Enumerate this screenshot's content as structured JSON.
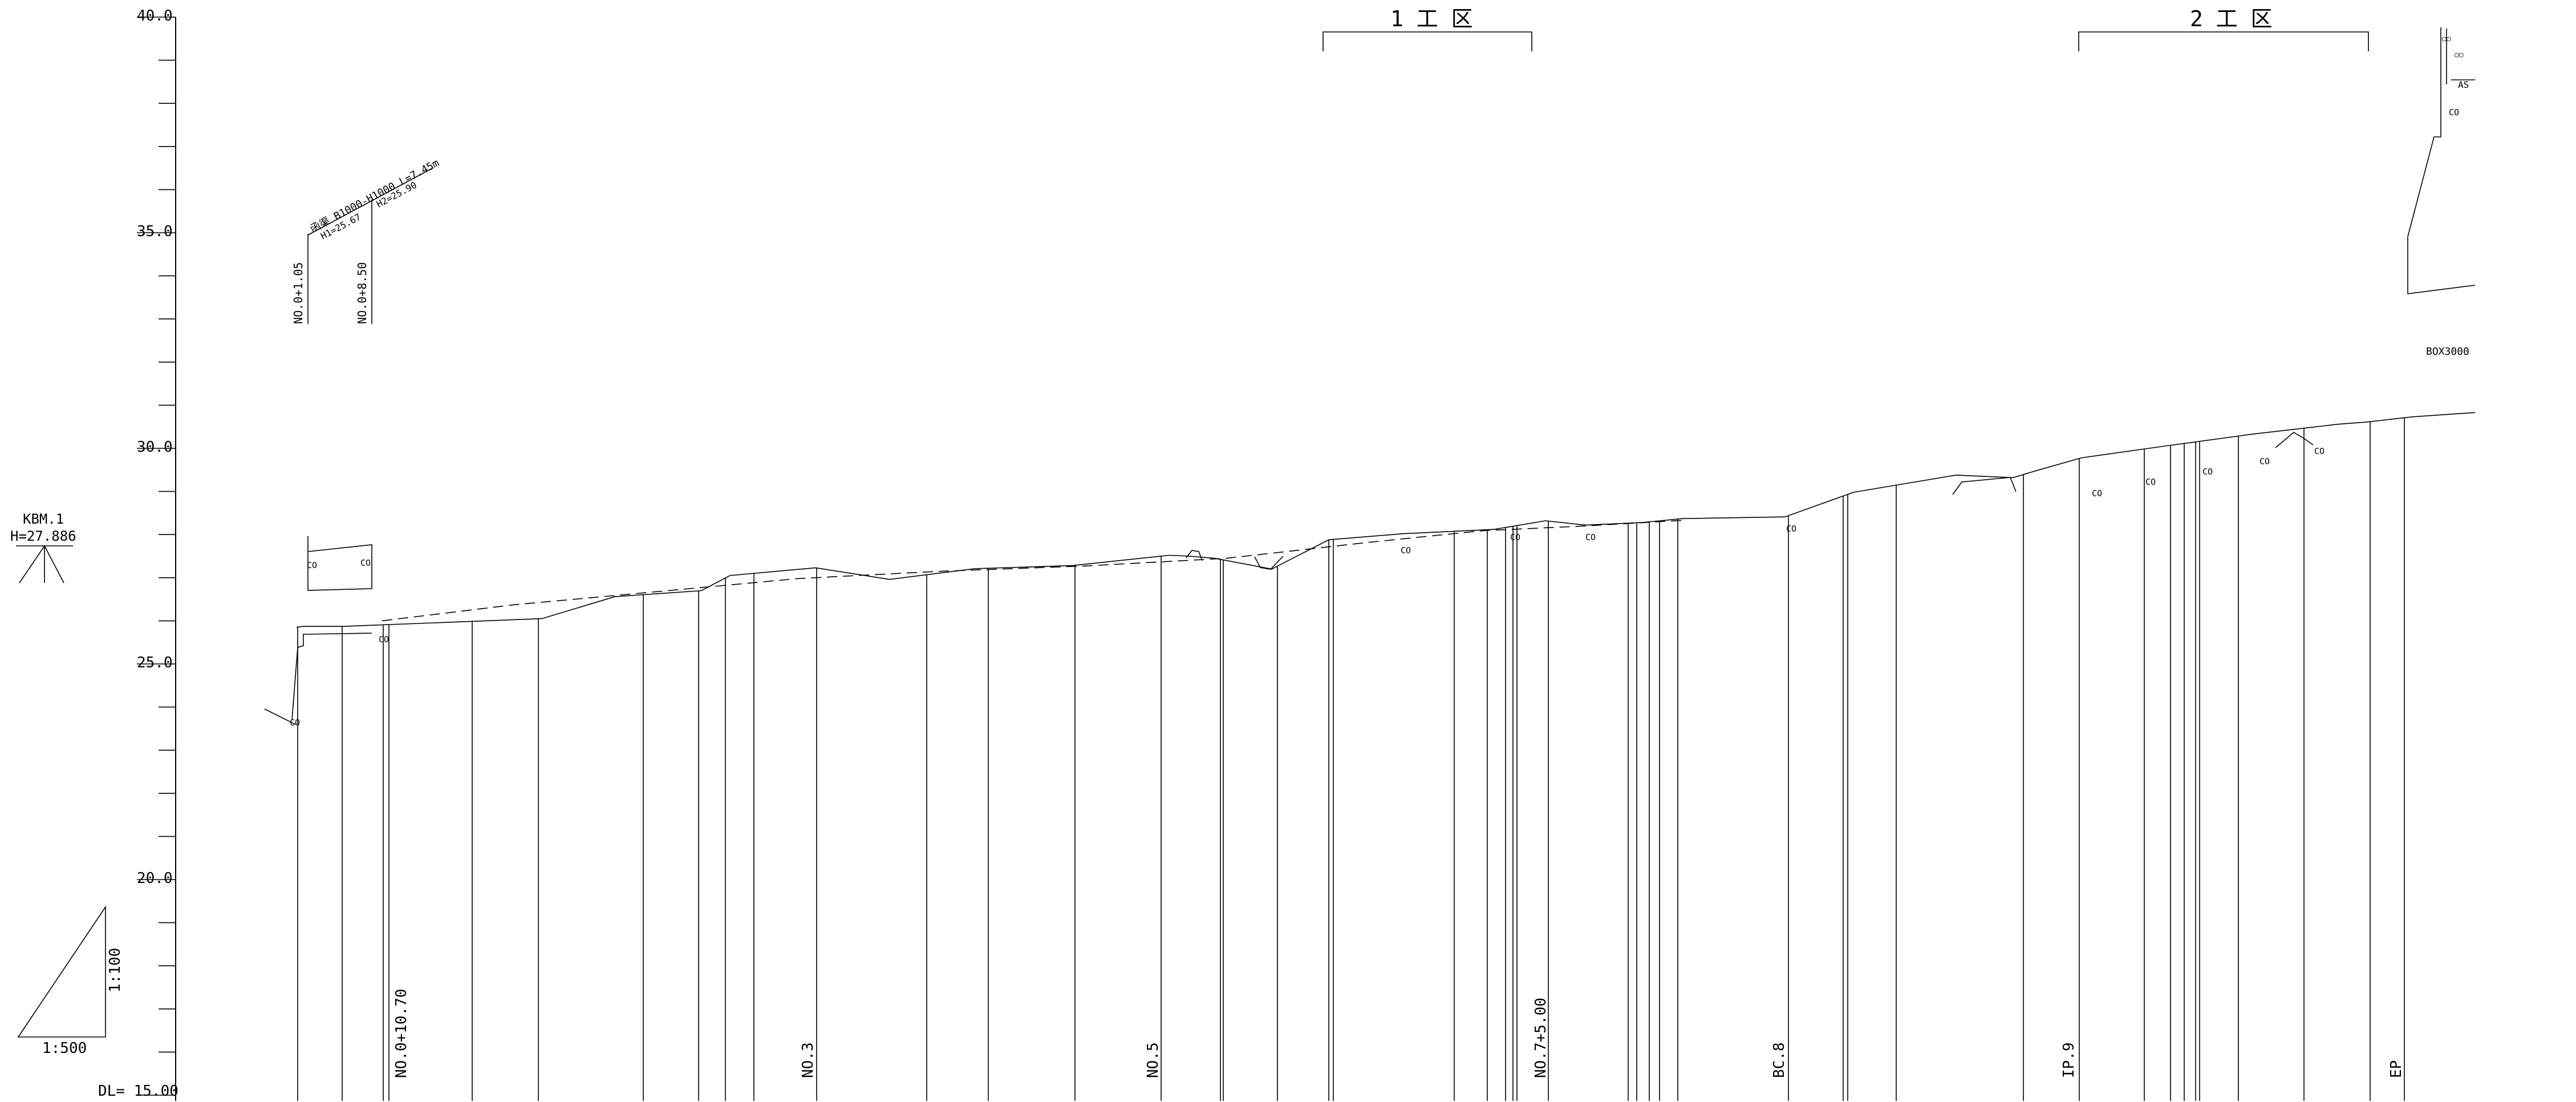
{
  "axis": {
    "ticks": [
      "40.0",
      "35.0",
      "30.0",
      "25.0",
      "20.0"
    ],
    "datum": "DL= 15.00"
  },
  "benchmark": {
    "name": "KBM.1",
    "height": "H=27.886"
  },
  "scale": {
    "horizontal": "1:500",
    "vertical": "1:100"
  },
  "sections": [
    {
      "label": "1 工 区"
    },
    {
      "label": "2 工 区"
    }
  ],
  "stations": [
    "NO.0+10.70",
    "NO.3",
    "NO.5",
    "NO.7+5.00",
    "BC.8",
    "IP.9",
    "EP"
  ],
  "structure": {
    "station_a": "NO.0+1.05",
    "station_b": "NO.0+8.50",
    "culvert_text": "函渠 B1000-H1000 L=7.45m",
    "h1": "H1=25.67",
    "h2": "H2=25.90"
  },
  "right_labels": {
    "as": "AS",
    "box": "BOX3000",
    "oo": "○○"
  },
  "marker": "CO",
  "chart_data": {
    "type": "line",
    "title": "",
    "xlabel": "",
    "ylabel": "",
    "ylim": [
      15.0,
      40.0
    ],
    "yticks": [
      40.0,
      35.0,
      30.0,
      25.0,
      20.0
    ],
    "series": [
      {
        "line_style": "solid",
        "x": [
          520,
          530,
          600,
          950,
          1078,
          1230,
          1280,
          1430,
          1560,
          1710,
          1880,
          2050,
          2085,
          2130,
          2230,
          2330,
          2460,
          2620,
          2710,
          2780,
          2880,
          2950,
          3130,
          3250,
          3430,
          3530,
          3570,
          3650,
          3800,
          3950,
          4100,
          4150,
          4230,
          4340
        ],
        "y": [
          25.85,
          25.87,
          25.87,
          26.05,
          26.56,
          26.7,
          27.05,
          27.23,
          26.96,
          27.21,
          27.28,
          27.52,
          27.5,
          27.45,
          27.2,
          27.88,
          28.02,
          28.12,
          28.32,
          28.22,
          28.28,
          28.37,
          28.41,
          28.98,
          29.38,
          29.32,
          29.48,
          29.78,
          30.06,
          30.33,
          30.56,
          30.61,
          30.73,
          30.83
        ]
      },
      {
        "line_style": "dashed",
        "x": [
          670,
          900,
          1130,
          1400,
          1650,
          1900,
          2150,
          2400,
          2600,
          2780,
          2950
        ],
        "y": [
          26.0,
          26.37,
          26.65,
          26.98,
          27.15,
          27.27,
          27.45,
          27.82,
          28.09,
          28.2,
          28.33
        ]
      }
    ]
  }
}
